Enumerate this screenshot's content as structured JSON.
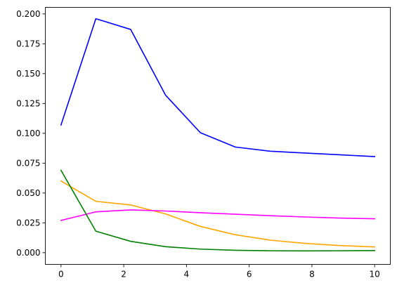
{
  "chart_data": {
    "type": "line",
    "title": "",
    "xlabel": "",
    "ylabel": "",
    "xlim": [
      -0.5,
      10.5
    ],
    "ylim": [
      -0.0098,
      0.2055
    ],
    "grid": false,
    "x": [
      0,
      1.111,
      2.222,
      3.333,
      4.444,
      5.556,
      6.667,
      7.778,
      8.889,
      10
    ],
    "xticks": [
      0,
      2,
      4,
      6,
      8,
      10
    ],
    "xtick_labels": [
      "0",
      "2",
      "4",
      "6",
      "8",
      "10"
    ],
    "yticks": [
      0.0,
      0.025,
      0.05,
      0.075,
      0.1,
      0.125,
      0.15,
      0.175,
      0.2
    ],
    "ytick_labels": [
      "0.000",
      "0.025",
      "0.050",
      "0.075",
      "0.100",
      "0.125",
      "0.150",
      "0.175",
      "0.200"
    ],
    "series": [
      {
        "color": "#0000ff",
        "values": [
          0.107,
          0.196,
          0.187,
          0.132,
          0.1005,
          0.0885,
          0.085,
          0.0835,
          0.082,
          0.0805
        ]
      },
      {
        "color": "#ffa500",
        "values": [
          0.06,
          0.043,
          0.04,
          0.0325,
          0.022,
          0.015,
          0.0105,
          0.0078,
          0.006,
          0.0048
        ]
      },
      {
        "color": "#ff00ff",
        "values": [
          0.027,
          0.0342,
          0.0358,
          0.0349,
          0.0335,
          0.0322,
          0.031,
          0.0299,
          0.029,
          0.0284
        ]
      },
      {
        "color": "#008000",
        "values": [
          0.069,
          0.018,
          0.0095,
          0.005,
          0.003,
          0.002,
          0.0016,
          0.0015,
          0.0016,
          0.0018
        ]
      }
    ]
  }
}
